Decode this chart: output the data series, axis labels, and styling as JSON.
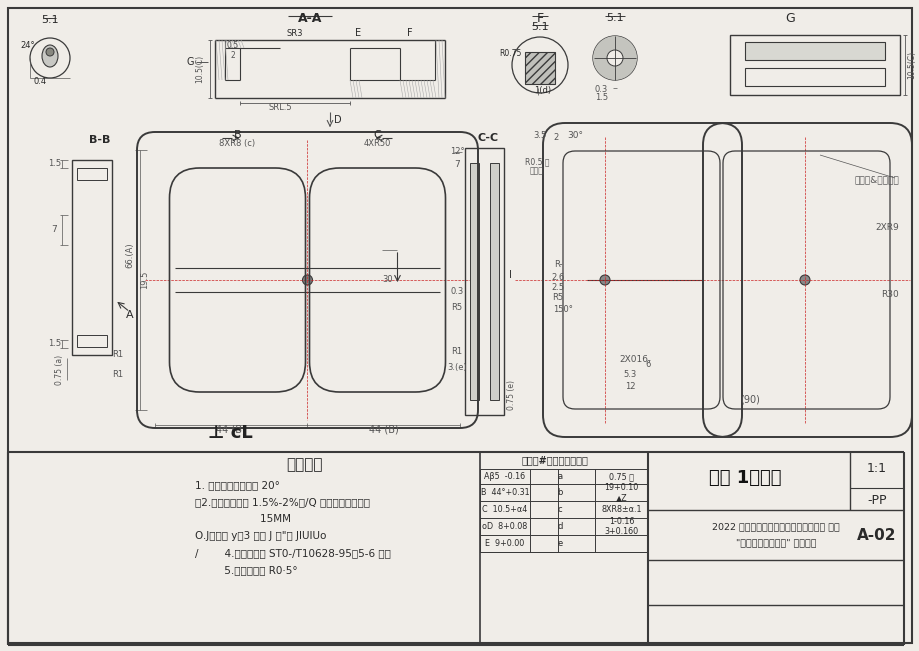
{
  "bg_color": "#f0ede8",
  "line_color": "#3a3a3a",
  "dim_color": "#555555",
  "red_line": "#cc2222",
  "title_tech": "技术要求",
  "tech_lines": [
    "1. 产品的拔模斜度为 20°",
    "、2.产品缩水率为 1.5%-2%。/Q 产品的平均壁重为",
    "                    15MM",
    "O.J口口口 y＋3 刃至 J デ\"力 JIUIUo",
    "/        4.未注公差按 ST0-/T10628-95（5-6 级）",
    "         5.未注圆角为 R0·5°"
  ],
  "table_header": "尺寸（#）的公差数值表",
  "title_box": "附图 1：收纳",
  "scale": "1:1",
  "material": "-PP",
  "competition": "2022 年全国职业院校技能大赛（中职名 称号",
  "competition2": "\"现代模具制造技术\" 赛项赛题",
  "drawing_no": "A-02"
}
